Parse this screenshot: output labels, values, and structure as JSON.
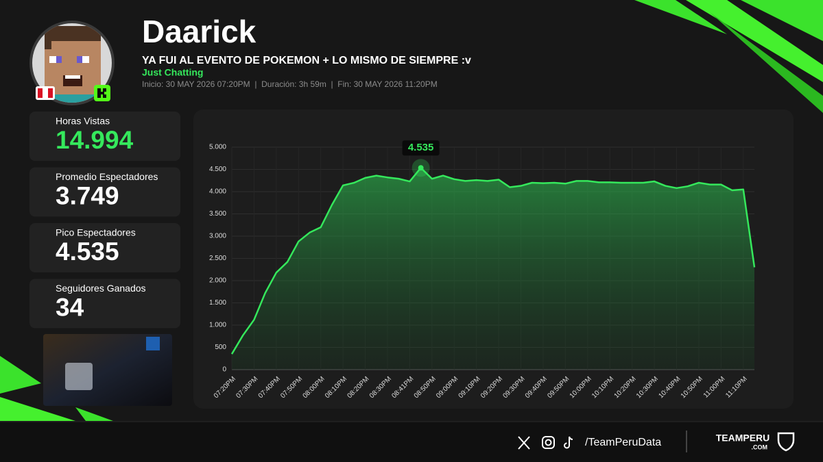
{
  "header": {
    "streamer": "Daarick",
    "stream_title": "YA FUI AL EVENTO DE POKEMON + LO MISMO DE SIEMPRE :v",
    "category": "Just Chatting",
    "info": "Inicio: 30 MAY 2026 07:20PM  |  Duración: 3h 59m  |  Fin: 30 MAY 2026 11:20PM"
  },
  "stats": [
    {
      "label": "Horas Vistas",
      "value": "14.994"
    },
    {
      "label": "Promedio Espectadores",
      "value": "3.749"
    },
    {
      "label": "Pico Espectadores",
      "value": "4.535"
    },
    {
      "label": "Seguidores Ganados",
      "value": "34"
    }
  ],
  "footer": {
    "handle": "/TeamPeruData",
    "brand": "TEAMPERU",
    "brand_sub": ".COM"
  },
  "chart_data": {
    "type": "line",
    "color": "#35e85c",
    "categories": [
      "07:20PM",
      null,
      "07:30PM",
      null,
      "07:40PM",
      null,
      "07:50PM",
      null,
      "08:00PM",
      null,
      "08:10PM",
      null,
      "08:20PM",
      null,
      "08:30PM",
      null,
      "08:41PM",
      null,
      "08:50PM",
      null,
      "09:00PM",
      null,
      "09:10PM",
      null,
      "09:20PM",
      null,
      "09:30PM",
      null,
      "09:40PM",
      null,
      "09:50PM",
      null,
      "10:00PM",
      null,
      "10:10PM",
      null,
      "10:20PM",
      null,
      "10:30PM",
      null,
      "10:40PM",
      null,
      "10:50PM",
      null,
      "11:00PM",
      null,
      "11:10PM",
      null
    ],
    "values": [
      350,
      770,
      1120,
      1720,
      2180,
      2420,
      2880,
      3080,
      3200,
      3700,
      4140,
      4200,
      4310,
      4360,
      4320,
      4290,
      4230,
      4535,
      4290,
      4360,
      4280,
      4240,
      4260,
      4240,
      4270,
      4100,
      4130,
      4200,
      4190,
      4200,
      4180,
      4240,
      4240,
      4210,
      4210,
      4200,
      4200,
      4200,
      4230,
      4130,
      4080,
      4120,
      4200,
      4160,
      4160,
      4030,
      4050,
      2300
    ],
    "value_labels": [
      null,
      null,
      null,
      null,
      null,
      null,
      null,
      null,
      null,
      null,
      null,
      null,
      null,
      null,
      null,
      null,
      null,
      "4.535",
      null,
      null,
      null,
      null,
      null,
      null,
      null,
      null,
      null,
      null,
      null,
      null,
      null,
      null,
      null,
      null,
      null,
      null,
      null,
      null,
      null,
      null,
      null,
      null,
      null,
      null,
      null,
      null,
      null,
      null
    ],
    "ylim": [
      0,
      5000
    ],
    "yticks": [
      0,
      500,
      {
        "value": 1000,
        "label": "1.000"
      },
      {
        "value": 1500,
        "label": "1.500"
      },
      {
        "value": 2000,
        "label": "2.000"
      },
      {
        "value": 2500,
        "label": "2.500"
      },
      {
        "value": 3000,
        "label": "3.000"
      },
      {
        "value": 3500,
        "label": "3.500"
      },
      {
        "value": 4000,
        "label": "4.000"
      },
      {
        "value": 4500,
        "label": "4.500"
      },
      {
        "value": 5000,
        "label": "5.000"
      }
    ],
    "grid": true
  }
}
